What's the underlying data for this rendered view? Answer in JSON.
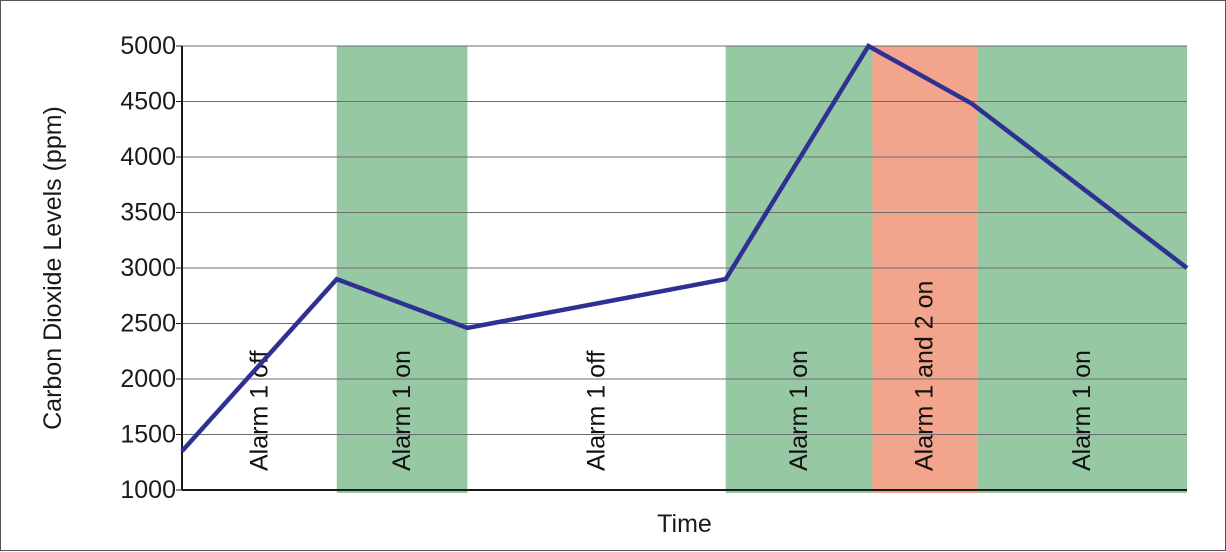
{
  "chart_data": {
    "type": "line",
    "title": "",
    "xlabel": "Time",
    "ylabel": "Carbon Dioxide Levels (ppm)",
    "ylim": [
      1000,
      5000
    ],
    "yticks": [
      1000,
      1500,
      2000,
      2500,
      3000,
      3500,
      4000,
      4500,
      5000
    ],
    "grid": true,
    "x_range": [
      0,
      100
    ],
    "series": [
      {
        "color": "#2e3192",
        "x": [
          0,
          15.4,
          28.4,
          54.1,
          68.3,
          78.6,
          100
        ],
        "y": [
          1350,
          2900,
          2460,
          2900,
          5000,
          4480,
          3000
        ]
      }
    ],
    "bands": [
      {
        "label": "Alarm 1 off",
        "x_start": 0,
        "x_end": 15.4,
        "color": ""
      },
      {
        "label": "Alarm 1 on",
        "x_start": 15.4,
        "x_end": 28.4,
        "color": "#96c8a4"
      },
      {
        "label": "Alarm 1 off",
        "x_start": 28.4,
        "x_end": 54.1,
        "color": ""
      },
      {
        "label": "Alarm 1 on",
        "x_start": 54.1,
        "x_end": 68.7,
        "color": "#96c8a4"
      },
      {
        "label": "Alarm 1 and 2 on",
        "x_start": 68.7,
        "x_end": 79.1,
        "color": "#f3a48c"
      },
      {
        "label": "Alarm 1 on",
        "x_start": 79.1,
        "x_end": 100,
        "color": "#96c8a4"
      }
    ]
  }
}
